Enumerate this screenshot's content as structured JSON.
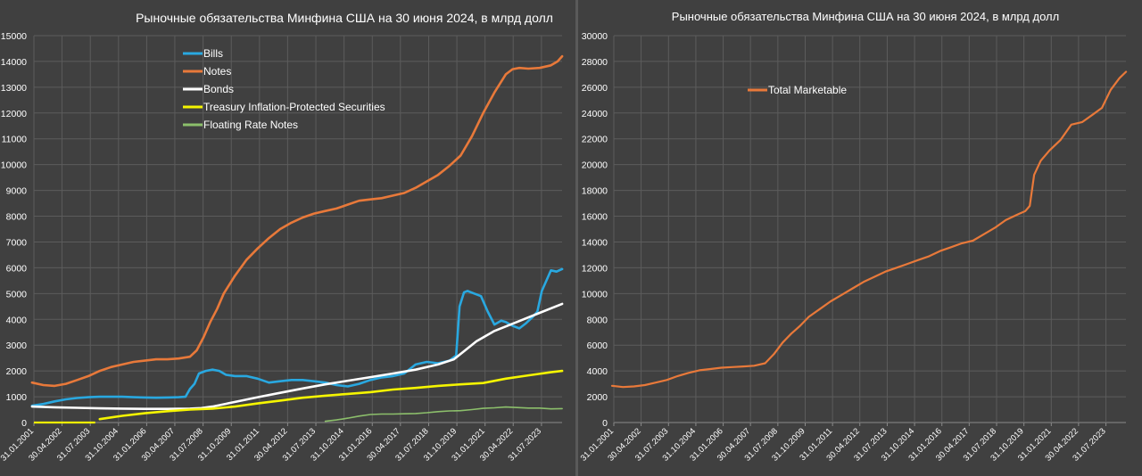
{
  "chart_data": [
    {
      "type": "line",
      "title": "Рыночные обязательства Минфина США на 30 июня 2024, в млрд долл",
      "xlabel": "",
      "ylabel": "",
      "ylim": [
        0,
        15000
      ],
      "yticks": [
        0,
        1000,
        2000,
        3000,
        4000,
        5000,
        6000,
        7000,
        8000,
        9000,
        10000,
        11000,
        12000,
        13000,
        14000,
        15000
      ],
      "xlim": [
        "2001-01-31",
        "2024-06-30"
      ],
      "xticks": [
        "31.01.2001",
        "30.04.2002",
        "31.07.2003",
        "31.10.2004",
        "31.01.2006",
        "30.04.2007",
        "31.07.2008",
        "31.10.2009",
        "31.01.2011",
        "30.04.2012",
        "31.07.2013",
        "31.10.2014",
        "31.01.2016",
        "30.04.2017",
        "31.07.2018",
        "31.10.2019",
        "31.01.2021",
        "30.04.2022",
        "31.07.2023"
      ],
      "grid": true,
      "legend_position": "top-left",
      "series": [
        {
          "name": "Bills",
          "color": "#29a8e0",
          "width": 2.6,
          "x": [
            2001.0,
            2001.5,
            2002.0,
            2002.5,
            2003.0,
            2003.5,
            2004.0,
            2004.5,
            2005.0,
            2005.5,
            2006.0,
            2006.5,
            2007.0,
            2007.5,
            2007.8,
            2008.0,
            2008.2,
            2008.4,
            2008.7,
            2009.0,
            2009.3,
            2009.6,
            2010.0,
            2010.5,
            2011.0,
            2011.5,
            2012.0,
            2012.5,
            2013.0,
            2013.5,
            2014.0,
            2014.5,
            2015.0,
            2015.5,
            2016.0,
            2016.5,
            2017.0,
            2017.5,
            2018.0,
            2018.5,
            2019.0,
            2019.5,
            2019.8,
            2019.95,
            2020.15,
            2020.3,
            2020.6,
            2020.9,
            2021.2,
            2021.5,
            2021.8,
            2022.0,
            2022.3,
            2022.6,
            2022.9,
            2023.2,
            2023.4,
            2023.6,
            2023.8,
            2024.0,
            2024.25,
            2024.5
          ],
          "y": [
            650,
            720,
            820,
            900,
            950,
            980,
            1000,
            1000,
            1000,
            980,
            970,
            960,
            970,
            980,
            1000,
            1300,
            1500,
            1900,
            2000,
            2050,
            2000,
            1850,
            1800,
            1800,
            1700,
            1550,
            1600,
            1650,
            1650,
            1600,
            1550,
            1450,
            1400,
            1500,
            1650,
            1750,
            1800,
            1900,
            2250,
            2350,
            2300,
            2400,
            2600,
            4500,
            5050,
            5100,
            5000,
            4900,
            4300,
            3800,
            3950,
            3900,
            3750,
            3650,
            3850,
            4100,
            4300,
            5100,
            5500,
            5900,
            5850,
            5950
          ]
        },
        {
          "name": "Notes",
          "color": "#e8793a",
          "width": 2.6,
          "x": [
            2001.0,
            2001.5,
            2002.0,
            2002.5,
            2003.0,
            2003.5,
            2004.0,
            2004.5,
            2005.0,
            2005.5,
            2006.0,
            2006.5,
            2007.0,
            2007.5,
            2008.0,
            2008.3,
            2008.6,
            2008.9,
            2009.2,
            2009.5,
            2010.0,
            2010.5,
            2011.0,
            2011.5,
            2012.0,
            2012.5,
            2013.0,
            2013.5,
            2014.0,
            2014.5,
            2015.0,
            2015.5,
            2016.0,
            2016.5,
            2017.0,
            2017.5,
            2018.0,
            2018.5,
            2019.0,
            2019.5,
            2020.0,
            2020.5,
            2021.0,
            2021.5,
            2022.0,
            2022.3,
            2022.6,
            2023.0,
            2023.5,
            2024.0,
            2024.3,
            2024.5
          ],
          "y": [
            1550,
            1450,
            1420,
            1500,
            1650,
            1800,
            2000,
            2150,
            2250,
            2350,
            2400,
            2450,
            2450,
            2480,
            2550,
            2800,
            3300,
            3900,
            4400,
            5000,
            5700,
            6300,
            6750,
            7150,
            7500,
            7750,
            7950,
            8100,
            8200,
            8300,
            8450,
            8600,
            8650,
            8700,
            8800,
            8900,
            9100,
            9350,
            9600,
            9950,
            10350,
            11100,
            12000,
            12800,
            13500,
            13700,
            13750,
            13720,
            13750,
            13850,
            14000,
            14200
          ]
        },
        {
          "name": "Bonds",
          "color": "#ffffff",
          "width": 2.6,
          "x": [
            2001.0,
            2002.0,
            2003.0,
            2004.0,
            2005.0,
            2006.0,
            2007.0,
            2008.0,
            2008.5,
            2009.0,
            2010.0,
            2011.0,
            2012.0,
            2013.0,
            2014.0,
            2015.0,
            2016.0,
            2017.0,
            2018.0,
            2019.0,
            2019.7,
            2020.2,
            2020.7,
            2021.5,
            2022.5,
            2023.5,
            2024.5
          ],
          "y": [
            620,
            590,
            570,
            550,
            540,
            530,
            530,
            540,
            560,
            620,
            800,
            980,
            1150,
            1320,
            1480,
            1620,
            1760,
            1900,
            2050,
            2250,
            2450,
            2800,
            3150,
            3550,
            3900,
            4250,
            4600
          ]
        },
        {
          "name": "Treasury Inflation-Protected Securities",
          "color": "#f5f500",
          "width": 2.6,
          "x": [
            2001.0,
            2002.0,
            2003.0,
            2003.7,
            2004.0,
            2005.0,
            2006.0,
            2007.0,
            2008.0,
            2009.0,
            2010.0,
            2011.0,
            2012.0,
            2013.0,
            2014.0,
            2015.0,
            2016.0,
            2017.0,
            2018.0,
            2019.0,
            2020.0,
            2021.0,
            2022.0,
            2023.0,
            2024.0,
            2024.5
          ],
          "y": [
            null,
            null,
            null,
            null,
            130,
            260,
            360,
            440,
            500,
            540,
            620,
            740,
            850,
            960,
            1040,
            1110,
            1180,
            1280,
            1340,
            1420,
            1480,
            1530,
            1700,
            1830,
            1950,
            2000
          ]
        },
        {
          "name": "Floating Rate Notes",
          "color": "#8cbf6b",
          "width": 1.6,
          "x": [
            2014.0,
            2014.5,
            2015.0,
            2015.5,
            2016.0,
            2016.5,
            2017.0,
            2017.5,
            2018.0,
            2018.5,
            2019.0,
            2019.5,
            2020.0,
            2020.5,
            2021.0,
            2021.5,
            2022.0,
            2022.5,
            2023.0,
            2023.5,
            2024.0,
            2024.5
          ],
          "y": [
            50,
            100,
            170,
            250,
            310,
            330,
            330,
            340,
            350,
            380,
            420,
            450,
            460,
            500,
            550,
            570,
            600,
            580,
            560,
            560,
            530,
            540
          ]
        }
      ],
      "legend": [
        "Bills",
        "Notes",
        "Bonds",
        "Treasury Inflation-Protected Securities",
        "Floating Rate Notes"
      ]
    },
    {
      "type": "line",
      "title": "Рыночные обязательства Минфина США на 30 июня 2024, в млрд долл",
      "xlabel": "",
      "ylabel": "",
      "ylim": [
        0,
        30000
      ],
      "yticks": [
        0,
        2000,
        4000,
        6000,
        8000,
        10000,
        12000,
        14000,
        16000,
        18000,
        20000,
        22000,
        24000,
        26000,
        28000,
        30000
      ],
      "xlim": [
        "2001-01-31",
        "2024-06-30"
      ],
      "xticks": [
        "31.01.2001",
        "30.04.2002",
        "31.07.2003",
        "31.10.2004",
        "31.01.2006",
        "30.04.2007",
        "31.07.2008",
        "31.10.2009",
        "31.01.2011",
        "30.04.2012",
        "31.07.2013",
        "31.10.2014",
        "31.01.2016",
        "30.04.2017",
        "31.07.2018",
        "31.10.2019",
        "31.01.2021",
        "30.04.2022",
        "31.07.2023"
      ],
      "grid": true,
      "legend_position": "top-left",
      "series": [
        {
          "name": "Total Marketable",
          "color": "#e8793a",
          "width": 2.2,
          "x": [
            2001.0,
            2001.5,
            2002.0,
            2002.5,
            2003.0,
            2003.5,
            2004.0,
            2004.5,
            2005.0,
            2005.5,
            2006.0,
            2006.5,
            2007.0,
            2007.5,
            2008.0,
            2008.4,
            2008.8,
            2009.2,
            2009.6,
            2010.0,
            2010.5,
            2011.0,
            2011.5,
            2012.0,
            2012.5,
            2013.0,
            2013.5,
            2014.0,
            2014.5,
            2015.0,
            2015.5,
            2016.0,
            2016.5,
            2017.0,
            2017.5,
            2018.0,
            2018.5,
            2019.0,
            2019.5,
            2019.9,
            2020.1,
            2020.3,
            2020.6,
            2021.0,
            2021.5,
            2022.0,
            2022.5,
            2023.0,
            2023.4,
            2023.8,
            2024.2,
            2024.5
          ],
          "y": [
            2850,
            2750,
            2800,
            2900,
            3100,
            3300,
            3600,
            3850,
            4050,
            4150,
            4250,
            4300,
            4350,
            4400,
            4600,
            5300,
            6200,
            6900,
            7500,
            8200,
            8800,
            9400,
            9900,
            10400,
            10900,
            11300,
            11700,
            12000,
            12300,
            12600,
            12900,
            13300,
            13600,
            13900,
            14100,
            14600,
            15100,
            15700,
            16100,
            16400,
            16800,
            19200,
            20300,
            21100,
            21900,
            23100,
            23300,
            23900,
            24400,
            25800,
            26700,
            27200
          ]
        }
      ],
      "legend": [
        "Total Marketable"
      ]
    }
  ]
}
